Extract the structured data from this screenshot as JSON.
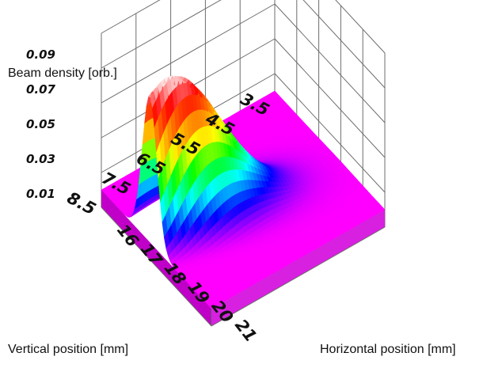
{
  "chart_data": {
    "type": "surface",
    "zlabel": "Beam density [orb.]",
    "ylabel": "Vertical position [mm]",
    "xlabel": "Horizontal position [mm]",
    "z_ticks": [
      "0.09",
      "0.07",
      "0.05",
      "0.03",
      "0.01"
    ],
    "y_ticks": [
      "8.5",
      "7.5",
      "6.5",
      "5.5",
      "4.5",
      "3.5"
    ],
    "x_ticks": [
      "16",
      "17",
      "18",
      "19",
      "20",
      "21"
    ],
    "xlim": [
      16,
      21
    ],
    "ylim": [
      3.5,
      8.5
    ],
    "zlim": [
      0.0,
      0.1
    ],
    "baseline_density": 0.01,
    "peak": {
      "x": 18.2,
      "y": 8.0,
      "density": 0.1
    },
    "grid": true,
    "colormap": [
      "#ff00ff",
      "#0000ff",
      "#00ffff",
      "#00ff00",
      "#ffff00",
      "#ff8000",
      "#ff0000",
      "#ffffff"
    ]
  }
}
